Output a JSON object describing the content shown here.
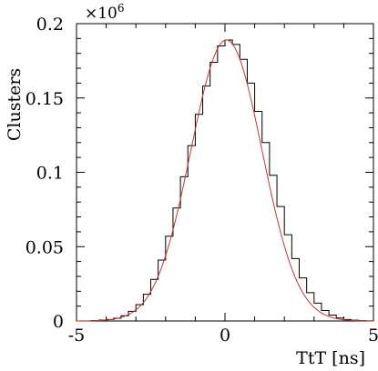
{
  "chart_data": {
    "type": "histogram",
    "xlabel": "TtT [ns]",
    "ylabel": "Clusters",
    "y_scale_label": "×10",
    "y_scale_exponent": "6",
    "xlim": [
      -5,
      5
    ],
    "ylim": [
      0,
      0.2
    ],
    "x_ticks": [
      -5,
      0,
      5
    ],
    "x_tick_labels": [
      "-5",
      "0",
      "5"
    ],
    "y_ticks": [
      0,
      0.05,
      0.1,
      0.15,
      0.2
    ],
    "y_tick_labels": [
      "0",
      "0.05",
      "0.1",
      "0.15",
      "0.2"
    ],
    "grid": false,
    "colors": {
      "histogram": "#000000",
      "fit": "#cc3333"
    },
    "histogram": {
      "bin_edges": [
        -5.0,
        -4.75,
        -4.5,
        -4.25,
        -4.0,
        -3.75,
        -3.5,
        -3.25,
        -3.0,
        -2.75,
        -2.5,
        -2.25,
        -2.0,
        -1.75,
        -1.5,
        -1.25,
        -1.0,
        -0.75,
        -0.5,
        -0.25,
        0.0,
        0.25,
        0.5,
        0.75,
        1.0,
        1.25,
        1.5,
        1.75,
        2.0,
        2.25,
        2.5,
        2.75,
        3.0,
        3.25,
        3.5,
        3.75,
        4.0,
        4.25,
        4.5,
        4.75,
        5.0
      ],
      "counts": [
        0.0,
        0.0,
        0.0003,
        0.0006,
        0.001,
        0.0018,
        0.0035,
        0.0065,
        0.011,
        0.018,
        0.028,
        0.041,
        0.057,
        0.076,
        0.097,
        0.118,
        0.139,
        0.158,
        0.174,
        0.185,
        0.189,
        0.186,
        0.176,
        0.16,
        0.141,
        0.12,
        0.098,
        0.077,
        0.058,
        0.042,
        0.029,
        0.019,
        0.012,
        0.007,
        0.004,
        0.002,
        0.001,
        0.0005,
        0.0002,
        0.0001
      ]
    },
    "fit": {
      "name": "gaussian",
      "amplitude": 0.189,
      "mean": 0.05,
      "sigma": 1.2
    }
  }
}
